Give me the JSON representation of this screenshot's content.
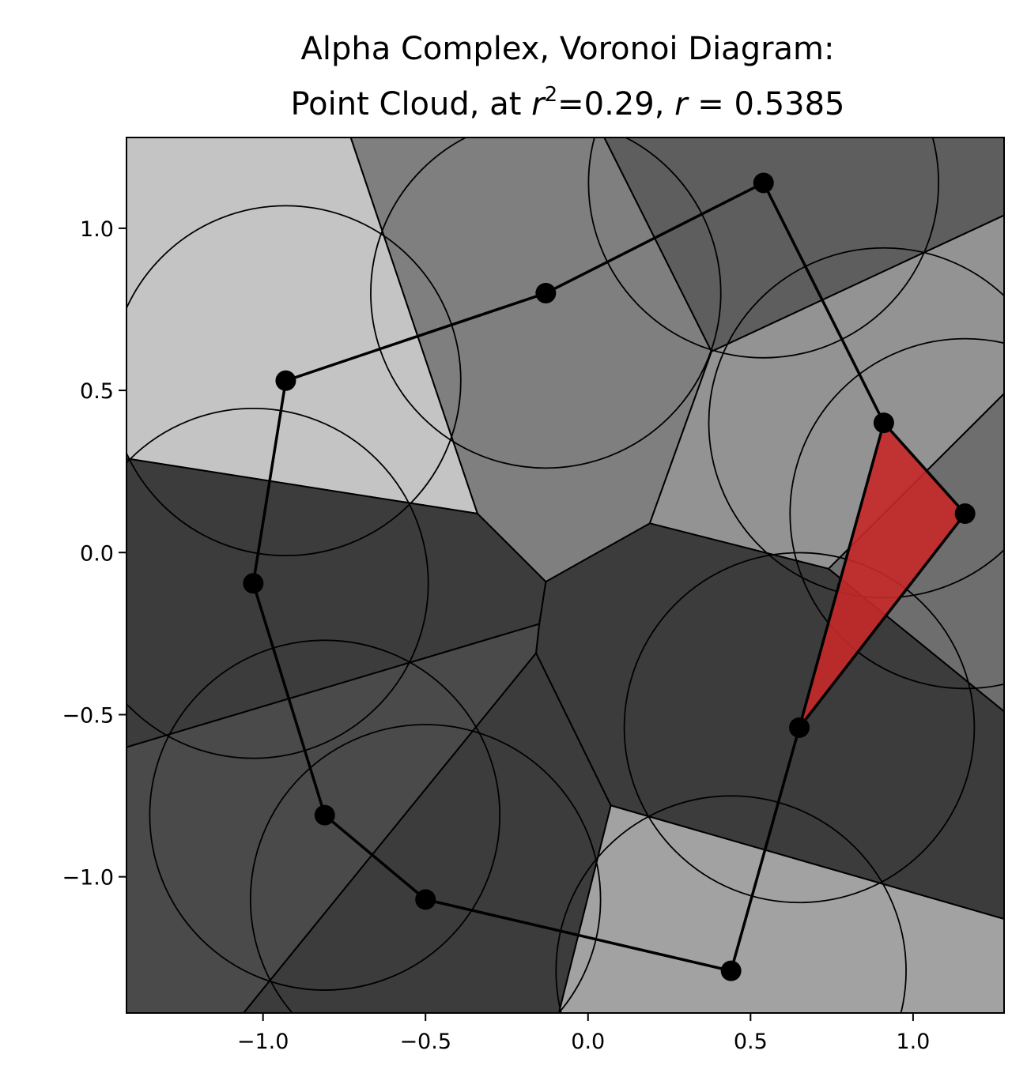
{
  "title": {
    "line1": "Alpha Complex, Voronoi Diagram:",
    "line2_prefix": "Point Cloud, at ",
    "line2_var_r": "r",
    "line2_sup": "2",
    "line2_mid": "=0.29, ",
    "line2_var_r2": "r",
    "line2_suffix": " = 0.5385"
  },
  "chart_data": {
    "type": "diagram",
    "xlim": [
      -1.42,
      1.28
    ],
    "ylim": [
      -1.42,
      1.28
    ],
    "x_ticks": [
      {
        "value": -1.0,
        "label": "−1.0"
      },
      {
        "value": -0.5,
        "label": "−0.5"
      },
      {
        "value": 0.0,
        "label": "0.0"
      },
      {
        "value": 0.5,
        "label": "0.5"
      },
      {
        "value": 1.0,
        "label": "1.0"
      }
    ],
    "y_ticks": [
      {
        "value": 1.0,
        "label": "1.0"
      },
      {
        "value": 0.5,
        "label": "0.5"
      },
      {
        "value": 0.0,
        "label": "0.0"
      },
      {
        "value": -0.5,
        "label": "−0.5"
      },
      {
        "value": -1.0,
        "label": "−1.0"
      }
    ],
    "radius": 0.5385,
    "points": [
      {
        "x": -0.93,
        "y": 0.53
      },
      {
        "x": -0.13,
        "y": 0.8
      },
      {
        "x": 0.54,
        "y": 1.14
      },
      {
        "x": 0.91,
        "y": 0.4
      },
      {
        "x": 1.16,
        "y": 0.12
      },
      {
        "x": 0.65,
        "y": -0.54
      },
      {
        "x": 0.44,
        "y": -1.29
      },
      {
        "x": -0.5,
        "y": -1.07
      },
      {
        "x": -0.81,
        "y": -0.81
      },
      {
        "x": -1.03,
        "y": -0.095
      }
    ],
    "edges": [
      [
        0,
        1
      ],
      [
        1,
        2
      ],
      [
        2,
        3
      ],
      [
        3,
        4
      ],
      [
        4,
        5
      ],
      [
        5,
        6
      ],
      [
        6,
        7
      ],
      [
        7,
        8
      ],
      [
        8,
        9
      ],
      [
        9,
        0
      ],
      [
        3,
        5
      ]
    ],
    "triangles": [
      [
        3,
        4,
        5
      ]
    ],
    "voronoi_cells": [
      {
        "fill": "#c4c4c4",
        "vertices": [
          [
            -1.42,
            1.28
          ],
          [
            -0.73,
            1.28
          ],
          [
            -0.34,
            0.12
          ],
          [
            -1.42,
            0.29
          ]
        ]
      },
      {
        "fill": "#7f7f7f",
        "vertices": [
          [
            -0.73,
            1.28
          ],
          [
            0.05,
            1.28
          ],
          [
            0.38,
            0.62
          ],
          [
            0.19,
            0.09
          ],
          [
            -0.13,
            -0.09
          ],
          [
            -0.34,
            0.12
          ]
        ]
      },
      {
        "fill": "#5e5e5e",
        "vertices": [
          [
            0.05,
            1.28
          ],
          [
            1.28,
            1.28
          ],
          [
            1.28,
            1.04
          ],
          [
            0.38,
            0.62
          ]
        ]
      },
      {
        "fill": "#939393",
        "vertices": [
          [
            0.38,
            0.62
          ],
          [
            1.28,
            1.04
          ],
          [
            1.28,
            0.49
          ],
          [
            0.74,
            -0.05
          ],
          [
            0.19,
            0.09
          ]
        ]
      },
      {
        "fill": "#6e6e6e",
        "vertices": [
          [
            1.28,
            0.49
          ],
          [
            1.28,
            -0.49
          ],
          [
            0.74,
            -0.05
          ]
        ]
      },
      {
        "fill": "#3c3c3c",
        "vertices": [
          [
            -0.13,
            -0.09
          ],
          [
            0.19,
            0.09
          ],
          [
            0.74,
            -0.05
          ],
          [
            1.28,
            -0.49
          ],
          [
            1.28,
            -1.13
          ],
          [
            0.07,
            -0.78
          ],
          [
            -0.16,
            -0.31
          ],
          [
            -0.15,
            -0.22
          ]
        ]
      },
      {
        "fill": "#a2a2a2",
        "vertices": [
          [
            0.07,
            -0.78
          ],
          [
            1.28,
            -1.13
          ],
          [
            1.28,
            -1.42
          ],
          [
            -0.09,
            -1.42
          ]
        ]
      },
      {
        "fill": "#3c3c3c",
        "vertices": [
          [
            -0.16,
            -0.31
          ],
          [
            0.07,
            -0.78
          ],
          [
            -0.09,
            -1.42
          ],
          [
            -1.06,
            -1.42
          ]
        ]
      },
      {
        "fill": "#4a4a4a",
        "vertices": [
          [
            -1.42,
            -0.6
          ],
          [
            -0.15,
            -0.22
          ],
          [
            -0.16,
            -0.31
          ],
          [
            -1.06,
            -1.42
          ],
          [
            -1.42,
            -1.42
          ]
        ]
      },
      {
        "fill": "#3c3c3c",
        "vertices": [
          [
            -1.42,
            0.29
          ],
          [
            -0.34,
            0.12
          ],
          [
            -0.13,
            -0.09
          ],
          [
            -0.15,
            -0.22
          ],
          [
            -1.42,
            -0.6
          ]
        ]
      }
    ]
  },
  "colors": {
    "triangle_fill": "#c62828",
    "edge": "#000000",
    "point": "#000000"
  }
}
